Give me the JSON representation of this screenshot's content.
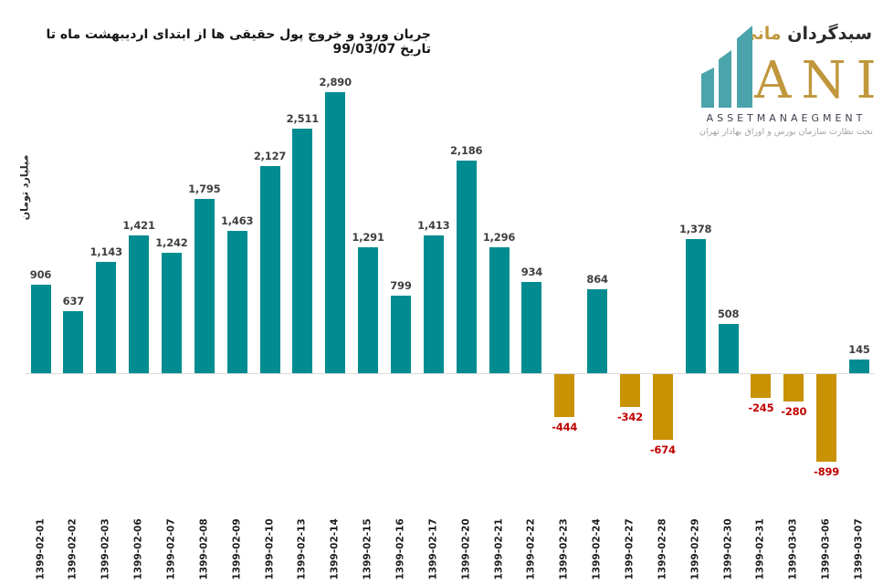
{
  "title": "جریان ورود و خروج پول حقیقی ها از ابتدای اردیبهشت ماه تا تاریخ 99/03/07",
  "y_axis_label": "میلیارد تومان",
  "logo": {
    "brand_fa_primary": "سبدگردان",
    "brand_fa_accent": "مانی",
    "brand_en": "ANI",
    "asset_text": "ASSETMANAEGMENT",
    "subtitle_fa": "تحت نظارت سازمان بورس و اوراق بهادار تهران"
  },
  "colors": {
    "positive_bar": "#008C90",
    "negative_bar": "#C99104",
    "positive_label": "#3F3F3F",
    "negative_label": "#C00000",
    "axis_line": "#D9D9D9",
    "title_text": "#161616",
    "logo_teal": "#4BA4AB",
    "logo_gold": "#C0973C",
    "logo_dark": "#2B2B2B"
  },
  "chart_data": {
    "type": "bar",
    "title": "جریان ورود و خروج پول حقیقی ها از ابتدای اردیبهشت ماه تا تاریخ 99/03/07",
    "xlabel": "",
    "ylabel": "میلیارد تومان",
    "ylim": [
      -1000,
      3000
    ],
    "grid": false,
    "legend_position": "none",
    "categories": [
      "1399-02-01",
      "1399-02-02",
      "1399-02-03",
      "1399-02-06",
      "1399-02-07",
      "1399-02-08",
      "1399-02-09",
      "1399-02-10",
      "1399-02-13",
      "1399-02-14",
      "1399-02-15",
      "1399-02-16",
      "1399-02-17",
      "1399-02-20",
      "1399-02-21",
      "1399-02-22",
      "1399-02-23",
      "1399-02-24",
      "1399-02-27",
      "1399-02-28",
      "1399-02-29",
      "1399-02-30",
      "1399-02-31",
      "1399-03-03",
      "1399-03-06",
      "1399-03-07"
    ],
    "values": [
      906,
      637,
      1143,
      1421,
      1242,
      1795,
      1463,
      2127,
      2511,
      2890,
      1291,
      799,
      1413,
      2186,
      1296,
      934,
      -444,
      864,
      -342,
      -674,
      1378,
      508,
      -245,
      -280,
      -899,
      145
    ]
  }
}
